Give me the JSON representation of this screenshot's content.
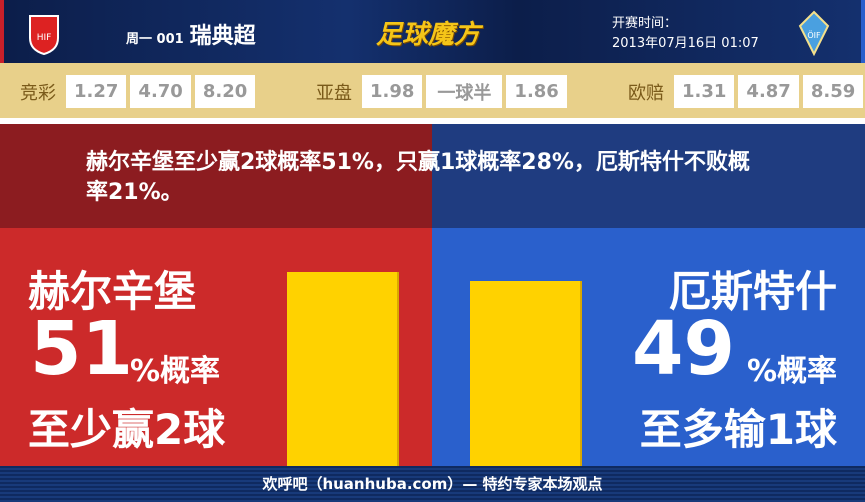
{
  "header": {
    "match_code": "周一 001",
    "league": "瑞典超",
    "brand": "足球魔方",
    "time_label": "开赛时间：",
    "time_value": "2013年07月16日 01:07",
    "home_logo": "HIF",
    "away_logo": "ÖIF"
  },
  "odds": {
    "jingcai": {
      "label": "竞彩",
      "values": [
        "1.27",
        "4.70",
        "8.20"
      ]
    },
    "yapan": {
      "label": "亚盘",
      "values": [
        "1.98",
        "一球半",
        "1.86"
      ]
    },
    "ouzhu": {
      "label": "欧赔",
      "values": [
        "1.31",
        "4.87",
        "8.59"
      ]
    }
  },
  "banner": {
    "text": "赫尔辛堡至少赢2球概率51%，只赢1球概率28%，厄斯特什不败概率21%。"
  },
  "home": {
    "name": "赫尔辛堡",
    "percent": "51",
    "percent_suffix": "%概率",
    "outcome": "至少赢2球",
    "bar_value": 51
  },
  "away": {
    "name": "厄斯特什",
    "percent": "49",
    "percent_suffix": "%概率",
    "outcome": "至多输1球",
    "bar_value": 49
  },
  "footer": {
    "text": "欢呼吧（huanhuba.com）— 特约专家本场观点"
  },
  "colors": {
    "home": "#cc2a2a",
    "away": "#2a60cc",
    "bar": "#ffd200",
    "odds_bg": "#e8d08a"
  }
}
